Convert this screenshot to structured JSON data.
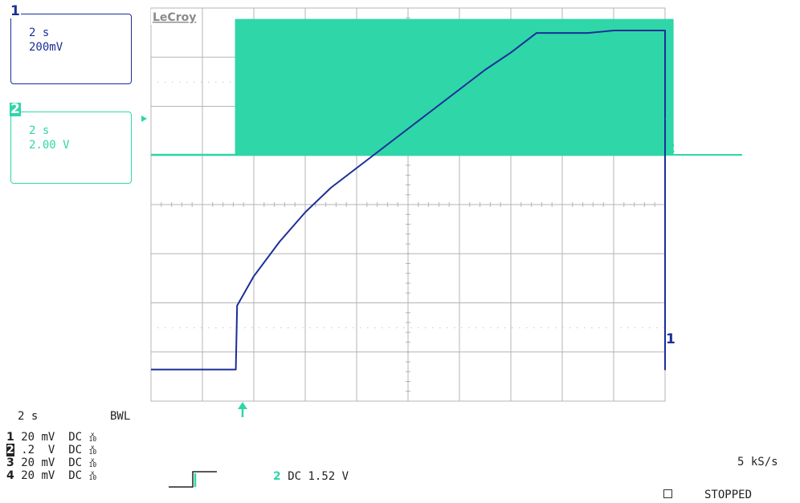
{
  "brand": "LeCroy",
  "channel_boxes": [
    {
      "number": "1",
      "timebase": "2 s",
      "scale": "200mV",
      "color": "#1a2f98"
    },
    {
      "number": "2",
      "timebase": "2 s",
      "scale": "2.00 V",
      "color": "#2fd6a8"
    }
  ],
  "trace_markers": {
    "ch1": "1",
    "ch2": "2"
  },
  "bottom": {
    "timebase": "2 s",
    "bwl": "BWL",
    "channels": [
      {
        "num": "1",
        "scale": "20 mV",
        "coupling": "DC",
        "atten": "x10"
      },
      {
        "num": "2",
        "scale": ".2  V",
        "coupling": "DC",
        "atten": "x10"
      },
      {
        "num": "3",
        "scale": "20 mV",
        "coupling": "DC",
        "atten": "x10"
      },
      {
        "num": "4",
        "scale": "20 mV",
        "coupling": "DC",
        "atten": "x10"
      }
    ],
    "trigger": {
      "channel": "2",
      "text": "DC 1.52 V"
    },
    "sample_rate": "5 kS/s",
    "status": "STOPPED"
  },
  "colors": {
    "ch1": "#1a2f98",
    "ch2": "#2fd6a8",
    "grid": "#b4b4b4"
  },
  "chart_data": {
    "type": "line",
    "x_unit": "s",
    "x_range": [
      0,
      20
    ],
    "series": [
      {
        "name": "1",
        "y_unit": "V",
        "x": [
          0,
          3.3,
          3.35,
          4,
          5,
          6,
          7,
          8,
          9,
          10,
          11,
          12,
          13,
          14,
          15,
          16,
          17,
          18,
          20.3,
          20.35,
          23
        ],
        "y": [
          -0.42,
          -0.42,
          -0.16,
          -0.04,
          0.1,
          0.22,
          0.32,
          0.4,
          0.48,
          0.56,
          0.64,
          0.72,
          0.8,
          0.87,
          0.95,
          0.95,
          0.95,
          0.96,
          0.96,
          -0.42,
          -0.4
        ]
      },
      {
        "name": "2",
        "y_unit": "V",
        "x": [
          0,
          3.3,
          3.3,
          20.3,
          20.3,
          23
        ],
        "y_low": [
          0,
          0,
          0,
          0,
          0,
          0
        ],
        "y_high": [
          0,
          0,
          5.5,
          5.5,
          0,
          0
        ]
      }
    ]
  }
}
